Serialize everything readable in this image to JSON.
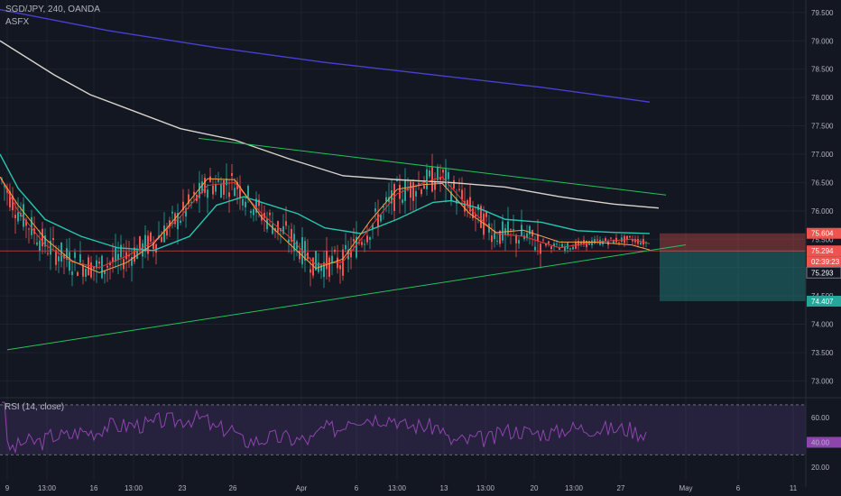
{
  "header": {
    "title": "SGD/JPY, 240, OANDA",
    "indicator": "ASFX"
  },
  "rsi": {
    "title": "RSI (14, close)",
    "ticks": [
      "60.00",
      "40.00",
      "20.00"
    ],
    "upper": 70,
    "lower": 30,
    "last": 40
  },
  "colors": {
    "background": "#131722",
    "up_candle": "#26a69a",
    "down_candle": "#ef5350",
    "ma_blue": "#4a3fd1",
    "ma_white": "#d9d4cc",
    "ma_teal": "#26c6b0",
    "ma_red": "#e53935",
    "ma_orange": "#f6a24a",
    "trendline": "#22c35a",
    "rsi_line": "#8e44ad",
    "rsi_band": "#3b2a5a"
  },
  "chart_data": {
    "type": "line",
    "symbol": "SGD/JPY",
    "timeframe": "240",
    "source": "OANDA",
    "y_ticks": [
      "79.500",
      "79.000",
      "78.500",
      "78.000",
      "77.500",
      "77.000",
      "76.500",
      "76.000",
      "75.500",
      "75.000",
      "74.500",
      "74.000",
      "73.500",
      "73.000"
    ],
    "x_ticks": [
      "9",
      "13:00",
      "16",
      "13:00",
      "23",
      "26",
      "Apr",
      "6",
      "13:00",
      "13",
      "13:00",
      "20",
      "13:00",
      "27",
      "May",
      "6",
      "11"
    ],
    "ylim": [
      72.72,
      79.72
    ],
    "price_labels": [
      {
        "value": "75.604",
        "style": "stop"
      },
      {
        "value": "75.294",
        "style": "last"
      },
      {
        "value": "02:39:23",
        "style": "countdown"
      },
      {
        "value": "75.293",
        "style": "bid"
      },
      {
        "value": "74.407",
        "style": "target"
      }
    ],
    "series": [
      {
        "name": "MA slow (blue)",
        "color": "#4a3fd1",
        "x": [
          0,
          120,
          240,
          360,
          480,
          600,
          720
        ],
        "y": [
          79.55,
          79.18,
          78.88,
          78.62,
          78.4,
          78.18,
          77.92
        ]
      },
      {
        "name": "MA long (white)",
        "color": "#d9d4cc",
        "x": [
          0,
          30,
          60,
          100,
          150,
          200,
          260,
          320,
          380,
          440,
          500,
          560,
          620,
          680,
          730
        ],
        "y": [
          79.0,
          78.7,
          78.4,
          78.05,
          77.75,
          77.45,
          77.25,
          76.92,
          76.62,
          76.55,
          76.5,
          76.42,
          76.25,
          76.12,
          76.05
        ]
      },
      {
        "name": "MA mid (teal)",
        "color": "#26c6b0",
        "x": [
          0,
          20,
          50,
          90,
          130,
          170,
          210,
          240,
          270,
          300,
          330,
          360,
          400,
          440,
          480,
          500,
          530,
          560,
          600,
          640,
          680,
          720
        ],
        "y": [
          77.0,
          76.4,
          75.85,
          75.55,
          75.35,
          75.3,
          75.55,
          76.1,
          76.25,
          76.1,
          75.95,
          75.7,
          75.6,
          75.85,
          76.15,
          76.18,
          76.05,
          75.85,
          75.8,
          75.65,
          75.62,
          75.6
        ]
      },
      {
        "name": "MA fast (red)",
        "color": "#e53935",
        "x": [
          0,
          20,
          50,
          80,
          110,
          140,
          170,
          200,
          230,
          260,
          290,
          320,
          350,
          380,
          410,
          440,
          470,
          490,
          520,
          550,
          580,
          620,
          660,
          700,
          720
        ],
        "y": [
          76.6,
          76.0,
          75.4,
          75.1,
          75.0,
          75.2,
          75.45,
          75.9,
          76.45,
          76.5,
          75.95,
          75.55,
          75.05,
          75.1,
          75.7,
          76.3,
          76.5,
          76.6,
          76.05,
          75.6,
          75.55,
          75.35,
          75.45,
          75.5,
          75.42
        ]
      }
    ],
    "trendlines": [
      {
        "x": [
          8,
          760
        ],
        "y": [
          73.55,
          75.4
        ]
      },
      {
        "x": [
          220,
          738
        ],
        "y": [
          77.28,
          76.28
        ]
      }
    ]
  }
}
